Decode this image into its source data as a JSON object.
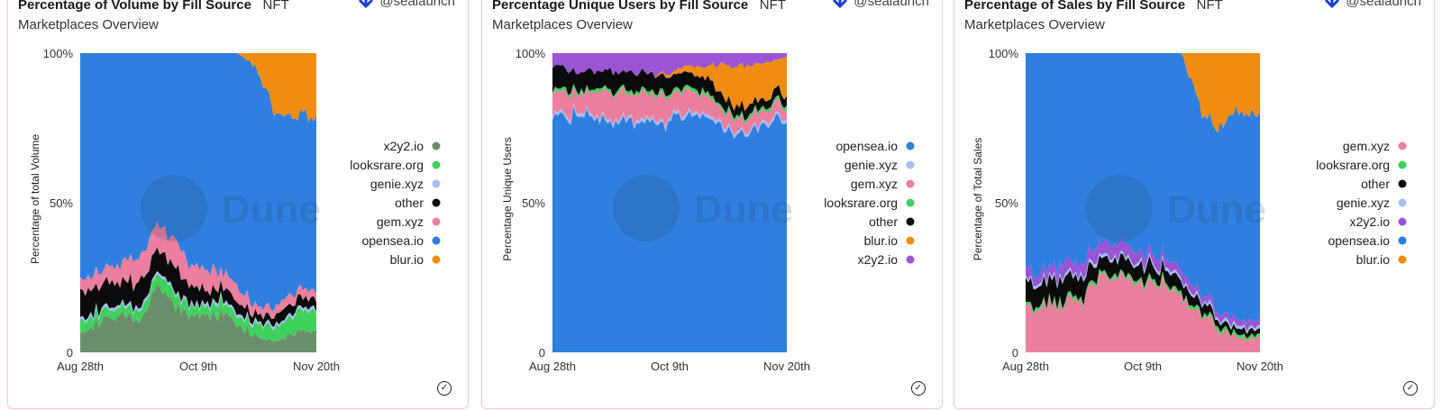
{
  "colors": {
    "opensea.io": "#2e7fdf",
    "blur.io": "#f08c12",
    "gem.xyz": "#ec7f9e",
    "looksrare.org": "#3fd15e",
    "other": "#0b0b0b",
    "genie.xyz": "#a7bdf0",
    "x2y2.io": "#9a55d5",
    "x2y2.io#vol": "#6b8f6a"
  },
  "watermark": "Dune",
  "panels": [
    {
      "title": "Percentage of Volume by Fill Source",
      "subtitle": "NFT Marketplaces Overview",
      "author": "@sealaunch"
    },
    {
      "title": "Percentage Unique Users by Fill Source",
      "subtitle": "NFT Marketplaces Overview",
      "author": "@sealaunch"
    },
    {
      "title": "Percentage of Sales by Fill Source",
      "subtitle": "NFT Marketplaces Overview",
      "author": "@sealaunch"
    }
  ],
  "chart_data": [
    {
      "type": "area",
      "stacked": true,
      "normalized": true,
      "title": "Percentage of Volume by Fill Source",
      "ylabel": "Percentage of total Volume",
      "yticks": [
        "0",
        "50%",
        "100%"
      ],
      "xticks": [
        "Aug 28th",
        "Oct 9th",
        "Nov 20th"
      ],
      "ylim": [
        0,
        100
      ],
      "legend_position": "right",
      "x": [
        "Aug 28",
        "Sep 4",
        "Sep 11",
        "Sep 18",
        "Sep 25",
        "Oct 2",
        "Oct 9",
        "Oct 16",
        "Oct 23",
        "Oct 30",
        "Nov 6",
        "Nov 13",
        "Nov 20"
      ],
      "series": [
        {
          "name": "x2y2.io",
          "color_key": "x2y2.io#vol",
          "values": [
            8,
            10,
            12,
            10,
            22,
            14,
            12,
            13,
            10,
            5,
            4,
            7,
            8
          ]
        },
        {
          "name": "looksrare.org",
          "values": [
            4,
            3,
            3,
            3,
            4,
            4,
            3,
            4,
            3,
            4,
            5,
            6,
            7
          ]
        },
        {
          "name": "genie.xyz",
          "values": [
            1,
            1,
            1,
            1,
            1,
            1,
            1,
            1,
            1,
            1,
            1,
            1,
            1
          ]
        },
        {
          "name": "other",
          "values": [
            9,
            8,
            7,
            9,
            7,
            7,
            5,
            4,
            4,
            2,
            3,
            3,
            3
          ]
        },
        {
          "name": "gem.xyz",
          "values": [
            4,
            5,
            6,
            9,
            8,
            9,
            7,
            6,
            5,
            3,
            3,
            3,
            3
          ]
        },
        {
          "name": "opensea.io",
          "values": [
            74,
            73,
            71,
            68,
            58,
            65,
            72,
            72,
            77,
            80,
            62,
            58,
            57
          ]
        },
        {
          "name": "blur.io",
          "values": [
            0,
            0,
            0,
            0,
            0,
            0,
            0,
            0,
            0,
            5,
            22,
            22,
            21
          ]
        }
      ],
      "legend": [
        "x2y2.io",
        "looksrare.org",
        "genie.xyz",
        "other",
        "gem.xyz",
        "opensea.io",
        "blur.io"
      ]
    },
    {
      "type": "area",
      "stacked": true,
      "normalized": true,
      "title": "Percentage Unique Users by Fill Source",
      "ylabel": "Percentage Unique Users",
      "yticks": [
        "0",
        "50%",
        "100%"
      ],
      "xticks": [
        "Aug 28th",
        "Oct 9th",
        "Nov 20th"
      ],
      "ylim": [
        0,
        100
      ],
      "legend_position": "right",
      "x": [
        "Aug 28",
        "Sep 4",
        "Sep 11",
        "Sep 18",
        "Sep 25",
        "Oct 2",
        "Oct 9",
        "Oct 16",
        "Oct 23",
        "Oct 30",
        "Nov 6",
        "Nov 13",
        "Nov 20"
      ],
      "series": [
        {
          "name": "opensea.io",
          "values": [
            80,
            79,
            79,
            77,
            78,
            76,
            78,
            79,
            79,
            75,
            73,
            77,
            78
          ]
        },
        {
          "name": "genie.xyz",
          "values": [
            1,
            1,
            1,
            1,
            1,
            1,
            1,
            1,
            1,
            1,
            1,
            1,
            1
          ]
        },
        {
          "name": "gem.xyz",
          "values": [
            7,
            7,
            7,
            9,
            8,
            9,
            8,
            7,
            6,
            4,
            4,
            4,
            4
          ]
        },
        {
          "name": "looksrare.org",
          "values": [
            1,
            1,
            1,
            1,
            1,
            1,
            1,
            1,
            1,
            1,
            1,
            1,
            1
          ]
        },
        {
          "name": "other",
          "values": [
            7,
            6,
            6,
            6,
            6,
            6,
            5,
            5,
            5,
            3,
            3,
            3,
            3
          ]
        },
        {
          "name": "blur.io",
          "values": [
            0,
            0,
            0,
            0,
            0,
            0,
            1,
            2,
            4,
            12,
            14,
            11,
            12
          ]
        },
        {
          "name": "x2y2.io",
          "values": [
            4,
            6,
            6,
            6,
            6,
            7,
            6,
            5,
            4,
            4,
            4,
            3,
            1
          ]
        }
      ],
      "legend": [
        "opensea.io",
        "genie.xyz",
        "gem.xyz",
        "looksrare.org",
        "other",
        "blur.io",
        "x2y2.io"
      ]
    },
    {
      "type": "area",
      "stacked": true,
      "normalized": true,
      "title": "Percentage of Sales by Fill Source",
      "ylabel": "Percentage of Total Sales",
      "yticks": [
        "0",
        "50%",
        "100%"
      ],
      "xticks": [
        "Aug 28th",
        "Oct 9th",
        "Nov 20th"
      ],
      "ylim": [
        0,
        100
      ],
      "legend_position": "right",
      "x": [
        "Aug 28",
        "Sep 4",
        "Sep 11",
        "Sep 18",
        "Sep 25",
        "Oct 2",
        "Oct 9",
        "Oct 16",
        "Oct 23",
        "Oct 30",
        "Nov 6",
        "Nov 13",
        "Nov 20"
      ],
      "series": [
        {
          "name": "gem.xyz",
          "values": [
            14,
            16,
            16,
            18,
            27,
            26,
            22,
            24,
            17,
            12,
            7,
            5,
            5
          ]
        },
        {
          "name": "looksrare.org",
          "values": [
            1,
            1,
            1,
            1,
            1,
            1,
            1,
            1,
            1,
            1,
            1,
            1,
            1
          ]
        },
        {
          "name": "other",
          "values": [
            7,
            7,
            8,
            6,
            5,
            5,
            5,
            4,
            4,
            3,
            2,
            2,
            2
          ]
        },
        {
          "name": "genie.xyz",
          "values": [
            1,
            1,
            1,
            1,
            1,
            1,
            1,
            1,
            1,
            1,
            1,
            1,
            1
          ]
        },
        {
          "name": "x2y2.io",
          "values": [
            3,
            3,
            4,
            4,
            4,
            4,
            3,
            3,
            3,
            2,
            2,
            2,
            2
          ]
        },
        {
          "name": "opensea.io",
          "values": [
            74,
            72,
            70,
            70,
            62,
            63,
            68,
            67,
            74,
            60,
            62,
            70,
            68
          ]
        },
        {
          "name": "blur.io",
          "values": [
            0,
            0,
            0,
            0,
            0,
            0,
            0,
            0,
            0,
            21,
            25,
            19,
            21
          ]
        }
      ],
      "legend": [
        "gem.xyz",
        "looksrare.org",
        "other",
        "genie.xyz",
        "x2y2.io",
        "opensea.io",
        "blur.io"
      ]
    }
  ]
}
